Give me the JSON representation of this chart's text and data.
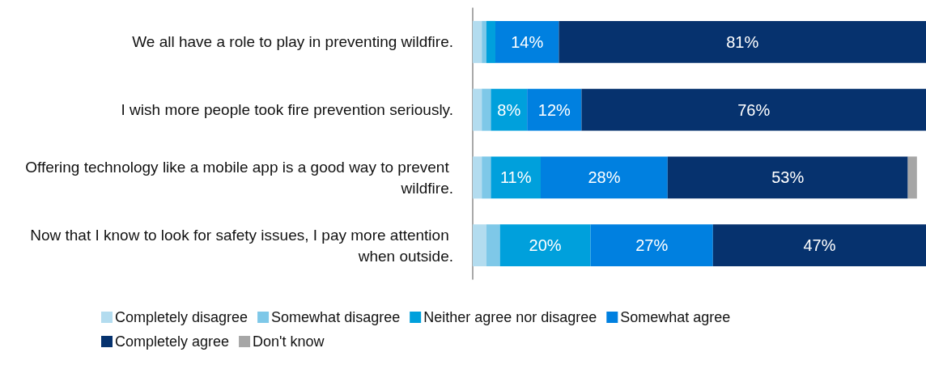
{
  "chart_data": {
    "type": "bar",
    "orientation": "horizontal",
    "stacked": true,
    "legend": "bottom",
    "categories": [
      "We all have a role to play in preventing wildfire.",
      "I wish more people took fire prevention seriously.",
      "Offering technology like a mobile app is a good way to prevent wildfire.",
      "Now that I know to look for safety issues, I pay more attention when outside."
    ],
    "series": [
      {
        "name": "Completely disagree",
        "color": "#b3dcef",
        "values": [
          2,
          2,
          2,
          3
        ],
        "value_labels": [
          null,
          null,
          null,
          null
        ]
      },
      {
        "name": "Somewhat disagree",
        "color": "#7ec8e8",
        "values": [
          1,
          2,
          2,
          3
        ],
        "value_labels": [
          null,
          null,
          null,
          null
        ]
      },
      {
        "name": "Neither agree nor disagree",
        "color": "#00a0dc",
        "values": [
          2,
          8,
          11,
          20
        ],
        "value_labels": [
          null,
          "8%",
          "11%",
          "20%"
        ]
      },
      {
        "name": "Somewhat agree",
        "color": "#0080e0",
        "values": [
          14,
          12,
          28,
          27
        ],
        "value_labels": [
          "14%",
          "12%",
          "28%",
          "27%"
        ]
      },
      {
        "name": "Completely agree",
        "color": "#06326e",
        "values": [
          81,
          76,
          53,
          47
        ],
        "value_labels": [
          "81%",
          "76%",
          "53%",
          "47%"
        ]
      },
      {
        "name": "Don't know",
        "color": "#a6a6a6",
        "values": [
          0,
          0,
          2,
          0
        ],
        "value_labels": [
          null,
          null,
          null,
          null
        ]
      }
    ]
  }
}
